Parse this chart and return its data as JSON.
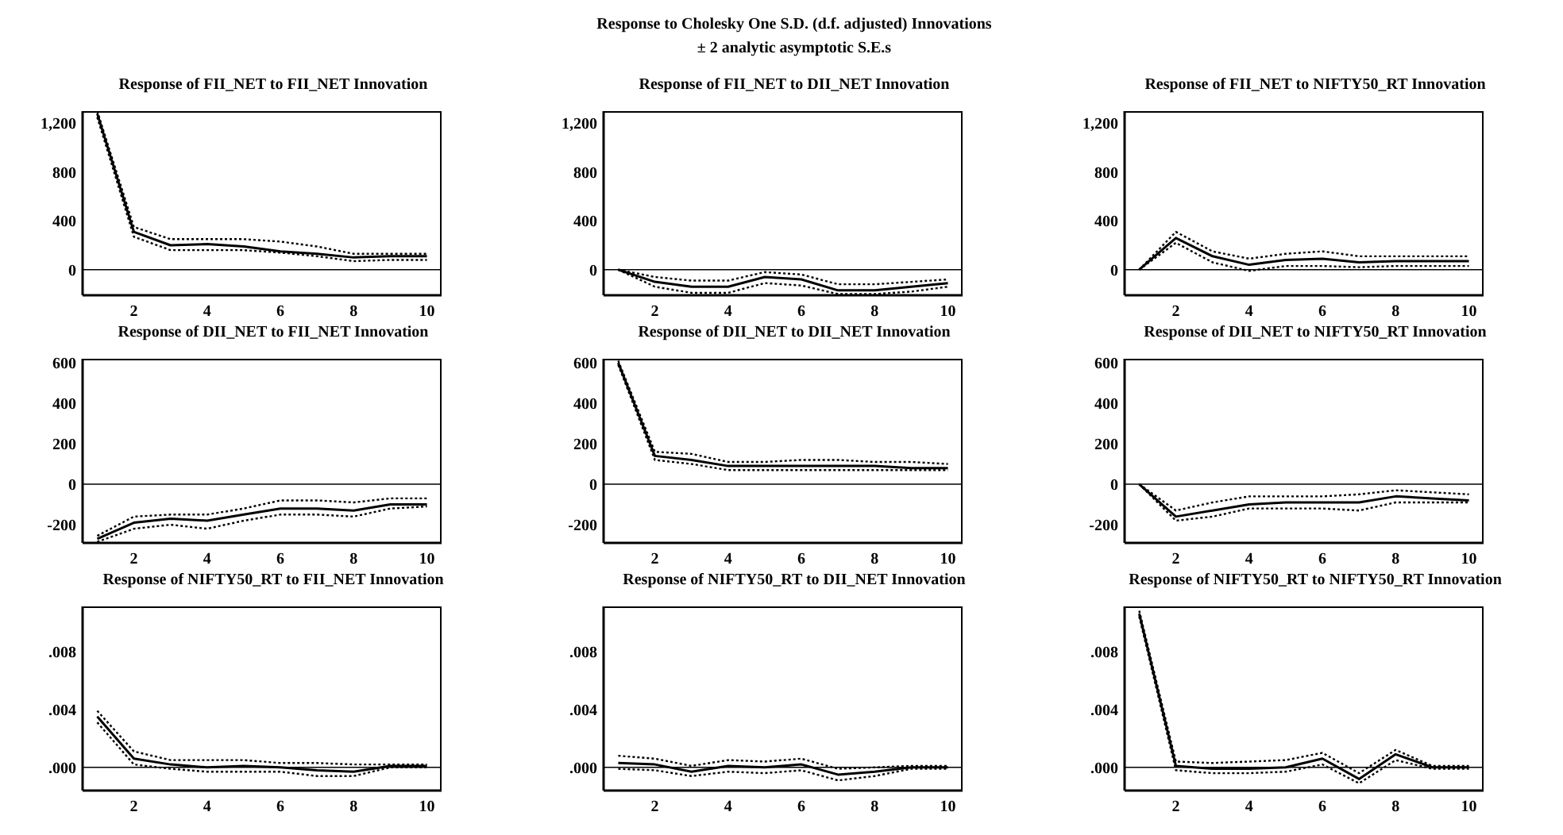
{
  "chart_data": [
    {
      "type": "line",
      "title": "Response of FII_NET to FII_NET Innovation",
      "annotations": [
        "Response to Cholesky One S.D. (d.f. adjusted) Innovations",
        "± 2 analytic asymptotic S.E.s"
      ],
      "x": [
        1,
        2,
        3,
        4,
        5,
        6,
        7,
        8,
        9,
        10
      ],
      "xlim": [
        0.6,
        10.4
      ],
      "xticks": [
        2,
        4,
        6,
        8,
        10
      ],
      "ylim": [
        -210,
        1300
      ],
      "yticks": [
        0,
        400,
        800,
        {
          "value": 1200,
          "label": "1,200"
        }
      ],
      "ref_lines": [
        {
          "axis": "y",
          "value": 0,
          "color": "#000000"
        }
      ],
      "marker": "none",
      "series": [
        {
          "color": "#000000",
          "line_style": "dotted",
          "values": [
            1300,
            350,
            250,
            250,
            250,
            230,
            190,
            130,
            130,
            130
          ]
        },
        {
          "color": "#000000",
          "line_style": "solid",
          "values": [
            1280,
            310,
            200,
            210,
            190,
            150,
            130,
            100,
            110,
            110
          ]
        },
        {
          "color": "#000000",
          "line_style": "dotted",
          "values": [
            1250,
            270,
            160,
            160,
            160,
            140,
            110,
            70,
            80,
            80
          ]
        }
      ]
    },
    {
      "type": "line",
      "title": "Response of FII_NET to DII_NET Innovation",
      "x": [
        1,
        2,
        3,
        4,
        5,
        6,
        7,
        8,
        9,
        10
      ],
      "xlim": [
        0.6,
        10.4
      ],
      "xticks": [
        2,
        4,
        6,
        8,
        10
      ],
      "ylim": [
        -210,
        1300
      ],
      "yticks": [
        0,
        400,
        800,
        {
          "value": 1200,
          "label": "1,200"
        }
      ],
      "ref_lines": [
        {
          "axis": "y",
          "value": 0,
          "color": "#000000"
        }
      ],
      "marker": "none",
      "series": [
        {
          "color": "#000000",
          "line_style": "dotted",
          "values": [
            0,
            -60,
            -90,
            -90,
            -20,
            -40,
            -120,
            -120,
            -100,
            -80
          ]
        },
        {
          "color": "#000000",
          "line_style": "solid",
          "values": [
            0,
            -100,
            -140,
            -140,
            -60,
            -80,
            -170,
            -170,
            -140,
            -110
          ]
        },
        {
          "color": "#000000",
          "line_style": "dotted",
          "values": [
            0,
            -140,
            -190,
            -190,
            -110,
            -130,
            -200,
            -200,
            -180,
            -140
          ]
        }
      ]
    },
    {
      "type": "line",
      "title": "Response of FII_NET to NIFTY50_RT Innovation",
      "x": [
        1,
        2,
        3,
        4,
        5,
        6,
        7,
        8,
        9,
        10
      ],
      "xlim": [
        0.6,
        10.4
      ],
      "xticks": [
        2,
        4,
        6,
        8,
        10
      ],
      "ylim": [
        -210,
        1300
      ],
      "yticks": [
        0,
        400,
        800,
        {
          "value": 1200,
          "label": "1,200"
        }
      ],
      "ref_lines": [
        {
          "axis": "y",
          "value": 0,
          "color": "#000000"
        }
      ],
      "marker": "none",
      "series": [
        {
          "color": "#000000",
          "line_style": "dotted",
          "values": [
            0,
            310,
            150,
            90,
            130,
            150,
            110,
            110,
            110,
            110
          ]
        },
        {
          "color": "#000000",
          "line_style": "solid",
          "values": [
            0,
            260,
            110,
            40,
            80,
            90,
            60,
            70,
            70,
            70
          ]
        },
        {
          "color": "#000000",
          "line_style": "dotted",
          "values": [
            0,
            220,
            60,
            -10,
            30,
            30,
            20,
            30,
            30,
            30
          ]
        }
      ]
    },
    {
      "type": "line",
      "title": "Response of DII_NET to FII_NET Innovation",
      "x": [
        1,
        2,
        3,
        4,
        5,
        6,
        7,
        8,
        9,
        10
      ],
      "xlim": [
        0.6,
        10.4
      ],
      "xticks": [
        2,
        4,
        6,
        8,
        10
      ],
      "ylim": [
        -290,
        620
      ],
      "yticks": [
        -200,
        0,
        200,
        400,
        600
      ],
      "ref_lines": [
        {
          "axis": "y",
          "value": 0,
          "color": "#000000"
        }
      ],
      "marker": "none",
      "series": [
        {
          "color": "#000000",
          "line_style": "dotted",
          "values": [
            -255,
            -160,
            -150,
            -150,
            -120,
            -80,
            -80,
            -90,
            -70,
            -70
          ]
        },
        {
          "color": "#000000",
          "line_style": "solid",
          "values": [
            -270,
            -190,
            -170,
            -180,
            -150,
            -120,
            -120,
            -130,
            -100,
            -100
          ]
        },
        {
          "color": "#000000",
          "line_style": "dotted",
          "values": [
            -285,
            -220,
            -200,
            -220,
            -180,
            -150,
            -150,
            -160,
            -120,
            -110
          ]
        }
      ]
    },
    {
      "type": "line",
      "title": "Response of DII_NET to DII_NET Innovation",
      "x": [
        1,
        2,
        3,
        4,
        5,
        6,
        7,
        8,
        9,
        10
      ],
      "xlim": [
        0.6,
        10.4
      ],
      "xticks": [
        2,
        4,
        6,
        8,
        10
      ],
      "ylim": [
        -290,
        620
      ],
      "yticks": [
        -200,
        0,
        200,
        400,
        600
      ],
      "ref_lines": [
        {
          "axis": "y",
          "value": 0,
          "color": "#000000"
        }
      ],
      "marker": "none",
      "series": [
        {
          "color": "#000000",
          "line_style": "dotted",
          "values": [
            610,
            160,
            150,
            110,
            110,
            120,
            120,
            110,
            110,
            100
          ]
        },
        {
          "color": "#000000",
          "line_style": "solid",
          "values": [
            600,
            140,
            120,
            90,
            90,
            90,
            90,
            90,
            80,
            80
          ]
        },
        {
          "color": "#000000",
          "line_style": "dotted",
          "values": [
            590,
            120,
            100,
            70,
            70,
            70,
            70,
            70,
            70,
            70
          ]
        }
      ]
    },
    {
      "type": "line",
      "title": "Response of DII_NET to NIFTY50_RT Innovation",
      "x": [
        1,
        2,
        3,
        4,
        5,
        6,
        7,
        8,
        9,
        10
      ],
      "xlim": [
        0.6,
        10.4
      ],
      "xticks": [
        2,
        4,
        6,
        8,
        10
      ],
      "ylim": [
        -290,
        620
      ],
      "yticks": [
        -200,
        0,
        200,
        400,
        600
      ],
      "ref_lines": [
        {
          "axis": "y",
          "value": 0,
          "color": "#000000"
        }
      ],
      "marker": "none",
      "series": [
        {
          "color": "#000000",
          "line_style": "dotted",
          "values": [
            0,
            -130,
            -90,
            -60,
            -60,
            -60,
            -50,
            -30,
            -40,
            -50
          ]
        },
        {
          "color": "#000000",
          "line_style": "solid",
          "values": [
            0,
            -160,
            -130,
            -100,
            -90,
            -90,
            -90,
            -60,
            -70,
            -80
          ]
        },
        {
          "color": "#000000",
          "line_style": "dotted",
          "values": [
            0,
            -180,
            -160,
            -120,
            -120,
            -120,
            -130,
            -90,
            -90,
            -90
          ]
        }
      ]
    },
    {
      "type": "line",
      "title": "Response of NIFTY50_RT to FII_NET Innovation",
      "x": [
        1,
        2,
        3,
        4,
        5,
        6,
        7,
        8,
        9,
        10
      ],
      "xlim": [
        0.6,
        10.4
      ],
      "xticks": [
        2,
        4,
        6,
        8,
        10
      ],
      "ylim": [
        -0.0016,
        0.0111
      ],
      "yticks": [
        {
          "value": 0,
          "label": ".000"
        },
        {
          "value": 0.004,
          "label": ".004"
        },
        {
          "value": 0.008,
          "label": ".008"
        }
      ],
      "ref_lines": [
        {
          "axis": "y",
          "value": 0,
          "color": "#000000"
        }
      ],
      "marker": "none",
      "series": [
        {
          "color": "#000000",
          "line_style": "dotted",
          "values": [
            0.0039,
            0.0011,
            0.0005,
            0.0005,
            0.0005,
            0.0003,
            0.0003,
            0.0002,
            0.0002,
            0.0002
          ]
        },
        {
          "color": "#000000",
          "line_style": "solid",
          "values": [
            0.0035,
            0.0006,
            0.0002,
            0,
            0.0001,
            0,
            -0.0002,
            -0.0003,
            0.0001,
            0.0001
          ]
        },
        {
          "color": "#000000",
          "line_style": "dotted",
          "values": [
            0.0031,
            0.0002,
            -0.0001,
            -0.0003,
            -0.0003,
            -0.0003,
            -0.0006,
            -0.0006,
            0,
            0
          ]
        }
      ]
    },
    {
      "type": "line",
      "title": "Response of NIFTY50_RT to DII_NET Innovation",
      "x": [
        1,
        2,
        3,
        4,
        5,
        6,
        7,
        8,
        9,
        10
      ],
      "xlim": [
        0.6,
        10.4
      ],
      "xticks": [
        2,
        4,
        6,
        8,
        10
      ],
      "ylim": [
        -0.0016,
        0.0111
      ],
      "yticks": [
        {
          "value": 0,
          "label": ".000"
        },
        {
          "value": 0.004,
          "label": ".004"
        },
        {
          "value": 0.008,
          "label": ".008"
        }
      ],
      "ref_lines": [
        {
          "axis": "y",
          "value": 0,
          "color": "#000000"
        }
      ],
      "marker": "none",
      "series": [
        {
          "color": "#000000",
          "line_style": "dotted",
          "values": [
            0.0008,
            0.0006,
            0.0001,
            0.0005,
            0.0004,
            0.0006,
            -0.0001,
            0,
            0.0001,
            0.0001
          ]
        },
        {
          "color": "#000000",
          "line_style": "solid",
          "values": [
            0.0003,
            0.0002,
            -0.0003,
            0.0001,
            0,
            0.0002,
            -0.0005,
            -0.0003,
            0,
            0
          ]
        },
        {
          "color": "#000000",
          "line_style": "dotted",
          "values": [
            -0.0001,
            -0.0002,
            -0.0006,
            -0.0003,
            -0.0004,
            -0.0002,
            -0.0009,
            -0.0006,
            -0.0001,
            -0.0001
          ]
        }
      ]
    },
    {
      "type": "line",
      "title": "Response of NIFTY50_RT to NIFTY50_RT Innovation",
      "x": [
        1,
        2,
        3,
        4,
        5,
        6,
        7,
        8,
        9,
        10
      ],
      "xlim": [
        0.6,
        10.4
      ],
      "xticks": [
        2,
        4,
        6,
        8,
        10
      ],
      "ylim": [
        -0.0016,
        0.0111
      ],
      "yticks": [
        {
          "value": 0,
          "label": ".000"
        },
        {
          "value": 0.004,
          "label": ".004"
        },
        {
          "value": 0.008,
          "label": ".008"
        }
      ],
      "ref_lines": [
        {
          "axis": "y",
          "value": 0,
          "color": "#000000"
        }
      ],
      "marker": "none",
      "series": [
        {
          "color": "#000000",
          "line_style": "dotted",
          "values": [
            0.0108,
            0.0004,
            0.0003,
            0.0004,
            0.0005,
            0.001,
            -0.0004,
            0.0012,
            0.0001,
            0.0001
          ]
        },
        {
          "color": "#000000",
          "line_style": "solid",
          "values": [
            0.0106,
            0.0001,
            -0.0001,
            -0.0001,
            0,
            0.0006,
            -0.0008,
            0.0009,
            0,
            0
          ]
        },
        {
          "color": "#000000",
          "line_style": "dotted",
          "values": [
            0.0104,
            -0.0002,
            -0.0004,
            -0.0004,
            -0.0003,
            0.0002,
            -0.0011,
            0.0005,
            -0.0001,
            -0.0001
          ]
        }
      ]
    }
  ]
}
